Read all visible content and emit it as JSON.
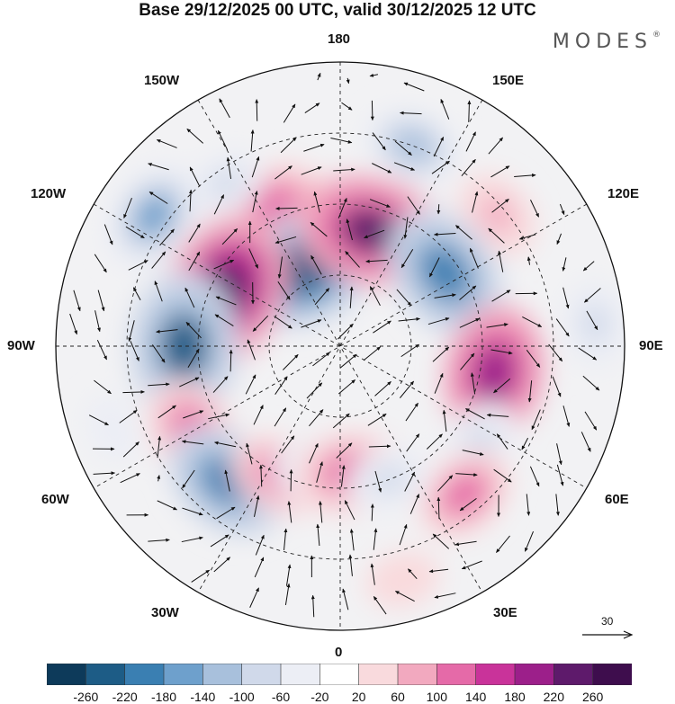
{
  "title": "Base 29/12/2025 00 UTC, valid 30/12/2025 12 UTC",
  "brand": "MODES",
  "brand_mark": "®",
  "longitude_labels": {
    "top": "180",
    "bottom": "0",
    "left": "90W",
    "right": "90E",
    "upper_left": "150W",
    "upper_right": "150E",
    "mid_upper_left": "120W",
    "mid_upper_right": "120E",
    "mid_lower_left": "60W",
    "mid_lower_right": "60E",
    "lower_left": "30W",
    "lower_right": "30E"
  },
  "vector_scale": "30",
  "colorbar": {
    "ticks": [
      "-260",
      "-220",
      "-180",
      "-140",
      "-100",
      "-60",
      "-20",
      "20",
      "60",
      "100",
      "140",
      "180",
      "220",
      "260"
    ],
    "colors": [
      "#0d3a5a",
      "#1d5c86",
      "#3a7fb2",
      "#6ea0cc",
      "#a8c0dc",
      "#d0d9ea",
      "#eceef5",
      "#ffffff",
      "#f9dadd",
      "#f2a9bf",
      "#e56aa8",
      "#c9339a",
      "#9c1f8a",
      "#5e1a6b",
      "#3e0d4d"
    ]
  },
  "anomaly_cells": [
    {
      "lon": -155,
      "dist": 0.55,
      "value": 120
    },
    {
      "lon": -145,
      "dist": 0.7,
      "value": -60
    },
    {
      "lon": -125,
      "dist": 0.8,
      "value": -140
    },
    {
      "lon": -155,
      "dist": 0.3,
      "value": -240
    },
    {
      "lon": 165,
      "dist": 0.42,
      "value": 230
    },
    {
      "lon": 160,
      "dist": 0.75,
      "value": -100
    },
    {
      "lon": 130,
      "dist": 0.72,
      "value": 80
    },
    {
      "lon": 125,
      "dist": 0.45,
      "value": -200
    },
    {
      "lon": 95,
      "dist": 0.9,
      "value": -80
    },
    {
      "lon": 80,
      "dist": 0.55,
      "value": 200
    },
    {
      "lon": 55,
      "dist": 0.6,
      "value": -80
    },
    {
      "lon": 40,
      "dist": 0.68,
      "value": 110
    },
    {
      "lon": -115,
      "dist": 0.45,
      "value": 260
    },
    {
      "lon": -90,
      "dist": 0.55,
      "value": -230
    },
    {
      "lon": -60,
      "dist": 0.6,
      "value": 130
    },
    {
      "lon": -40,
      "dist": 0.62,
      "value": -180
    },
    {
      "lon": -25,
      "dist": 0.5,
      "value": 110
    },
    {
      "lon": -10,
      "dist": 0.45,
      "value": -80
    },
    {
      "lon": 5,
      "dist": 0.45,
      "value": 140
    },
    {
      "lon": 20,
      "dist": 0.5,
      "value": -70
    },
    {
      "lon": -70,
      "dist": 0.85,
      "value": -30
    },
    {
      "lon": 15,
      "dist": 0.85,
      "value": 40
    }
  ]
}
